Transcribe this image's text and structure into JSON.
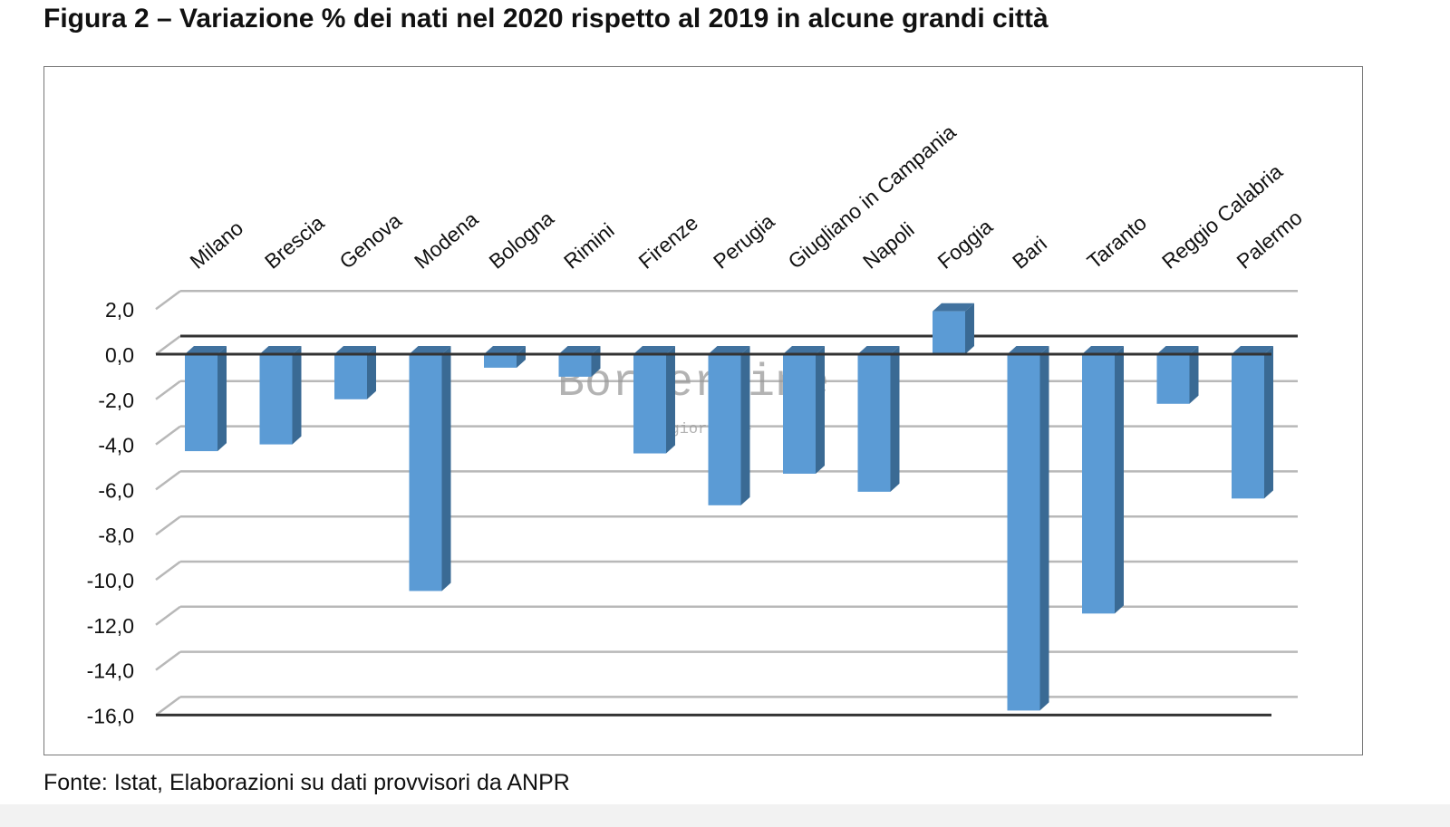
{
  "title": "Figura 2 – Variazione % dei nati nel 2020 rispetto al 2019 in alcune grandi città",
  "source": "Fonte: Istat, Elaborazioni su dati provvisori da ANPR",
  "watermark": {
    "main": "Borderline",
    "sub": "-Il giornale-"
  },
  "colors": {
    "bar_front": "#5b9bd5",
    "bar_side": "#3a6a94",
    "bar_top": "#41729f",
    "grid": "#b8b8b8",
    "axis": "#333333"
  },
  "chart_data": {
    "type": "bar",
    "style": "3d-column",
    "title": "Figura 2 – Variazione % dei nati nel 2020 rispetto al 2019 in alcune grandi città",
    "xlabel": "",
    "ylabel": "",
    "categories": [
      "Milano",
      "Brescia",
      "Genova",
      "Modena",
      "Bologna",
      "Rimini",
      "Firenze",
      "Perugia",
      "Giugliano in Campania",
      "Napoli",
      "Foggia",
      "Bari",
      "Taranto",
      "Reggio Calabria",
      "Palermo"
    ],
    "values": [
      -4.3,
      -4.0,
      -2.0,
      -10.5,
      -0.6,
      -1.0,
      -4.4,
      -6.7,
      -5.3,
      -6.1,
      1.9,
      -15.8,
      -11.5,
      -2.2,
      -6.4
    ],
    "ylim": [
      -16,
      2
    ],
    "yticks": [
      2,
      0,
      -2,
      -4,
      -6,
      -8,
      -10,
      -12,
      -14,
      -16
    ],
    "ytick_labels": [
      "2,0",
      "0,0",
      "-2,0",
      "-4,0",
      "-6,0",
      "-8,0",
      "-10,0",
      "-12,0",
      "-14,0",
      "-16,0"
    ],
    "grid": true,
    "legend": "none"
  }
}
